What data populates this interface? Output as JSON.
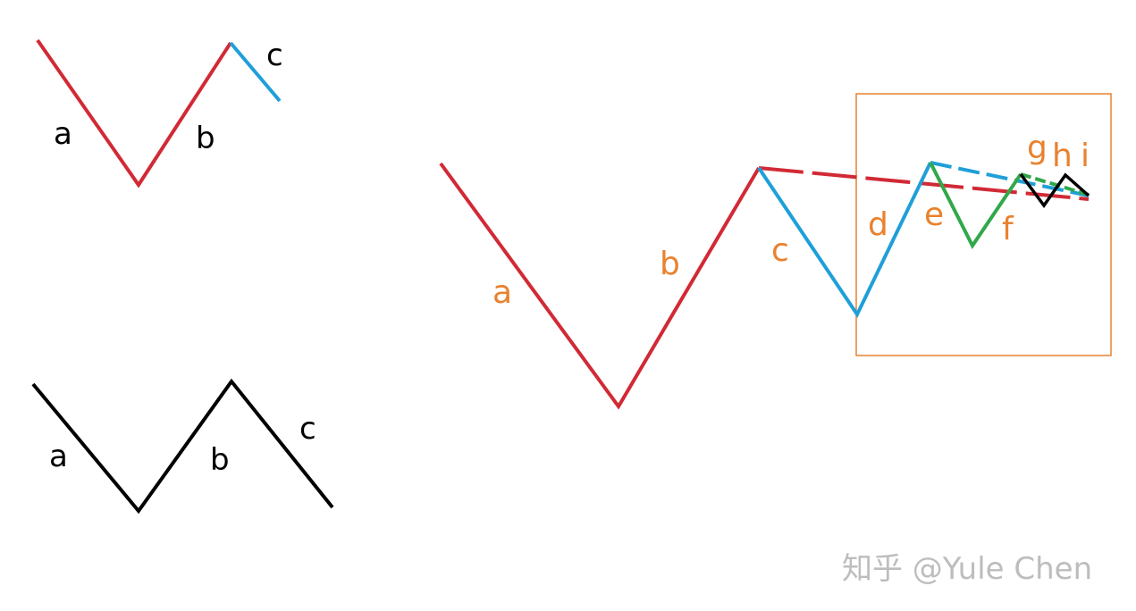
{
  "colors": {
    "red": "#d12a35",
    "blue": "#1f9fd8",
    "green": "#31a84a",
    "black": "#000000",
    "orange": "#e8822f",
    "watermark": "#bdbdbd"
  },
  "diagram1": {
    "labels": {
      "a": "a",
      "b": "b",
      "c": "c"
    }
  },
  "diagram2": {
    "labels": {
      "a": "a",
      "b": "b",
      "c": "c"
    }
  },
  "diagram3": {
    "labels": {
      "a": "a",
      "b": "b",
      "c": "c",
      "d": "d",
      "e": "e",
      "f": "f",
      "g": "g",
      "h": "h",
      "i": "i"
    }
  },
  "watermark": "知乎 @Yule Chen"
}
